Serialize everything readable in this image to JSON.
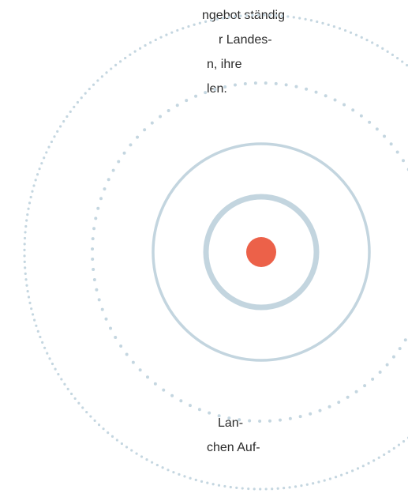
{
  "text_top": [
    "ngebot ständig",
    "r Landes-",
    "n, ihre",
    "len."
  ],
  "text_bottom": [
    "Lan-",
    "chen Auf-"
  ],
  "colors": {
    "ring": "#c3d5df",
    "dots": "#c4d6e0",
    "center": "#ec6149",
    "text": "#2b2b2b"
  }
}
